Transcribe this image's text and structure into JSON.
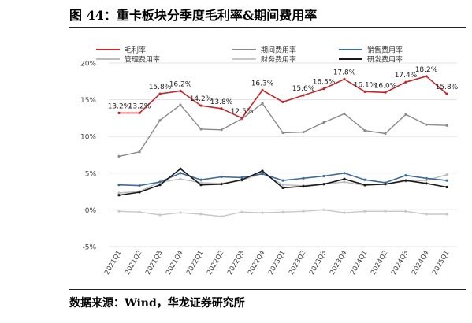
{
  "header": {
    "title": "图 44：重卡板块分季度毛利率&期间费用率"
  },
  "footer": {
    "source": "数据来源：Wind，华龙证券研究所"
  },
  "chart_data": {
    "type": "line",
    "categories": [
      "2021Q1",
      "2021Q2",
      "2021Q3",
      "2021Q4",
      "2022Q1",
      "2022Q2",
      "2022Q3",
      "2022Q4",
      "2023Q1",
      "2023Q2",
      "2023Q3",
      "2023Q4",
      "2024Q1",
      "2024Q2",
      "2024Q3",
      "2024Q4",
      "2025Q1"
    ],
    "ylim": [
      -5,
      20
    ],
    "yticks": [
      "-5%",
      "0%",
      "5%",
      "10%",
      "15%",
      "20%"
    ],
    "grid": true,
    "legend_position": "top",
    "series": [
      {
        "name": "毛利率",
        "color": "#c0282d",
        "width": 1.6,
        "values": [
          13.2,
          13.2,
          15.8,
          16.2,
          14.2,
          13.8,
          12.5,
          16.3,
          14.7,
          15.6,
          16.5,
          17.8,
          16.1,
          16.0,
          17.4,
          18.2,
          15.8
        ],
        "labels": [
          "13.2%",
          "13.2%",
          "15.8%",
          "16.2%",
          "14.2%",
          "13.8%",
          "12.5%",
          "16.3%",
          "",
          "15.6%",
          "16.5%",
          "17.8%",
          "16.1%",
          "16.0%",
          "17.4%",
          "18.2%",
          "15.8%"
        ]
      },
      {
        "name": "期间费用率",
        "color": "#8a8a8a",
        "width": 1.4,
        "values": [
          7.3,
          7.9,
          12.2,
          14.3,
          11.0,
          10.9,
          12.4,
          14.5,
          10.5,
          10.6,
          11.9,
          13.1,
          10.8,
          10.4,
          13.0,
          11.6,
          11.5
        ]
      },
      {
        "name": "销售费用率",
        "color": "#3e6c99",
        "width": 1.6,
        "values": [
          3.4,
          3.3,
          3.8,
          5.0,
          4.1,
          4.5,
          4.4,
          4.9,
          4.0,
          4.3,
          4.6,
          5.0,
          4.1,
          3.7,
          4.7,
          4.3,
          4.0
        ]
      },
      {
        "name": "管理费用率",
        "color": "#bdbdbd",
        "width": 1.4,
        "values": [
          2.3,
          2.5,
          3.8,
          4.2,
          3.7,
          3.6,
          4.0,
          5.0,
          3.4,
          3.3,
          3.5,
          3.8,
          3.3,
          3.5,
          3.9,
          4.0,
          4.8
        ]
      },
      {
        "name": "财务费用率",
        "color": "#c7c7c7",
        "width": 1.4,
        "values": [
          -0.2,
          -0.3,
          -0.7,
          -0.4,
          -0.6,
          -0.9,
          -0.3,
          -0.4,
          -0.3,
          -0.2,
          0.0,
          -0.4,
          -0.2,
          -0.2,
          -0.2,
          -0.6,
          -0.6
        ]
      },
      {
        "name": "研发费用率",
        "color": "#1a1a1a",
        "width": 1.6,
        "values": [
          2.0,
          2.4,
          3.4,
          5.6,
          3.4,
          3.5,
          4.1,
          5.3,
          3.0,
          3.2,
          3.5,
          4.2,
          3.4,
          3.5,
          4.0,
          3.6,
          3.1
        ]
      }
    ]
  }
}
